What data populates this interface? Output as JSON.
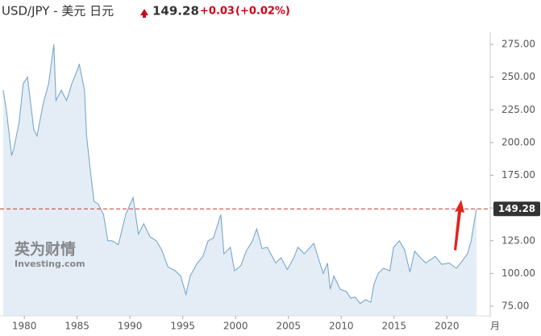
{
  "chart_data": {
    "type": "area-line",
    "title": "USD/JPY - 美元 日元",
    "price": 149.28,
    "change": "+0.03",
    "change_pct": "(+0.02%)",
    "watermark": [
      "英为财情",
      "Investing.com"
    ],
    "x_unit_label": "月",
    "line_color": "#7aa7cc",
    "fill_color": "#e4edf5",
    "ref_color": "#c0392b",
    "x": [
      1978.0,
      1978.3,
      1978.8,
      1979.0,
      1979.5,
      1979.9,
      1980.3,
      1980.9,
      1981.2,
      1981.8,
      1982.3,
      1982.8,
      1983.0,
      1983.5,
      1984.0,
      1984.5,
      1985.0,
      1985.2,
      1985.7,
      1985.9,
      1986.3,
      1986.6,
      1987.0,
      1987.5,
      1987.9,
      1988.3,
      1988.9,
      1989.3,
      1989.6,
      1990.3,
      1990.8,
      1991.3,
      1991.9,
      1992.5,
      1993.0,
      1993.6,
      1994.3,
      1994.8,
      1995.3,
      1995.7,
      1996.3,
      1996.9,
      1997.4,
      1997.9,
      1998.6,
      1998.9,
      1999.5,
      1999.9,
      2000.5,
      2001.0,
      2001.6,
      2002.0,
      2002.5,
      2003.0,
      2003.8,
      2004.3,
      2004.9,
      2005.5,
      2005.9,
      2006.5,
      2007.4,
      2007.9,
      2008.3,
      2008.7,
      2008.95,
      2009.3,
      2009.9,
      2010.5,
      2010.9,
      2011.3,
      2011.8,
      2012.3,
      2012.8,
      2013.1,
      2013.5,
      2014.0,
      2014.6,
      2014.95,
      2015.5,
      2016.0,
      2016.5,
      2016.95,
      2017.5,
      2018.0,
      2018.9,
      2019.5,
      2020.2,
      2020.9,
      2021.5,
      2021.95,
      2022.3,
      2022.5,
      2022.8
    ],
    "values": [
      240,
      225,
      190,
      195,
      215,
      245,
      250,
      210,
      205,
      230,
      245,
      275,
      232,
      240,
      232,
      245,
      255,
      260,
      240,
      205,
      175,
      155,
      153,
      145,
      125,
      125,
      122,
      135,
      145,
      158,
      130,
      138,
      128,
      125,
      118,
      105,
      102,
      98,
      84,
      98,
      107,
      113,
      125,
      127,
      145,
      115,
      120,
      102,
      106,
      117,
      125,
      134,
      119,
      120,
      108,
      112,
      103,
      112,
      120,
      115,
      123,
      110,
      100,
      108,
      88,
      98,
      88,
      86,
      81,
      82,
      77,
      80,
      78,
      92,
      100,
      104,
      102,
      120,
      125,
      118,
      101,
      117,
      112,
      108,
      113,
      107,
      108,
      104,
      110,
      115,
      125,
      135,
      149.28
    ],
    "xlim": [
      1977.7,
      2024.1
    ],
    "ylim": [
      67.6,
      281.2
    ],
    "xticks": [
      1980,
      1985,
      1990,
      1995,
      2000,
      2005,
      2010,
      2015,
      2020
    ],
    "yticks": [
      {
        "value": 75,
        "label": "75.00"
      },
      {
        "value": 100,
        "label": "100.00"
      },
      {
        "value": 125,
        "label": "125.00"
      },
      {
        "value": 150,
        "label": "150.00"
      },
      {
        "value": 175,
        "label": "175.00"
      },
      {
        "value": 200,
        "label": "200.00"
      },
      {
        "value": 225,
        "label": "225.00"
      },
      {
        "value": 250,
        "label": "250.00"
      },
      {
        "value": 275,
        "label": "275.00"
      }
    ],
    "grid": false
  }
}
